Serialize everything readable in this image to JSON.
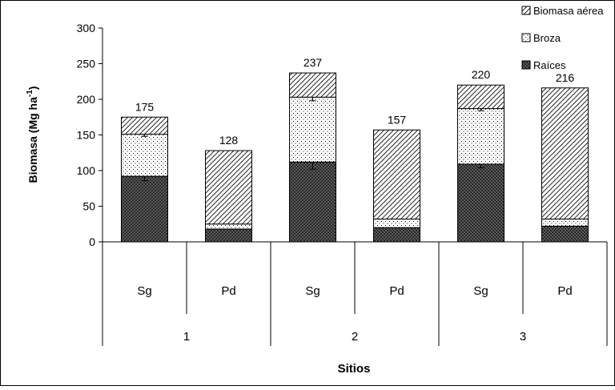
{
  "chart_data": {
    "type": "bar",
    "stacked": true,
    "categories": [
      "Sg",
      "Pd",
      "Sg",
      "Pd",
      "Sg",
      "Pd"
    ],
    "groups": [
      {
        "label": "1",
        "span": 2
      },
      {
        "label": "2",
        "span": 2
      },
      {
        "label": "3",
        "span": 2
      }
    ],
    "series": [
      {
        "name": "Raíces",
        "values": [
          92,
          18,
          112,
          20,
          109,
          22
        ],
        "errors": [
          6,
          null,
          10,
          null,
          5,
          null
        ]
      },
      {
        "name": "Broza",
        "values": [
          59,
          7,
          91,
          12,
          78,
          10
        ],
        "errors": [
          3,
          null,
          5,
          null,
          3,
          null
        ]
      },
      {
        "name": "Biomasa aérea",
        "values": [
          24,
          103,
          34,
          125,
          33,
          184
        ],
        "errors": [
          null,
          null,
          null,
          null,
          null,
          null
        ]
      }
    ],
    "totals": [
      "175",
      "128",
      "237",
      "157",
      "220",
      "216"
    ],
    "legend_order": [
      "Biomasa aérea",
      "Broza",
      "Raíces"
    ],
    "legend_position": "top-right",
    "ylabel_main": "Biomasa (Mg ha",
    "ylabel_sup": "-1",
    "ylabel_end": ")",
    "xlabel": "Sitios",
    "ylim": [
      0,
      300
    ],
    "yticks": [
      "0",
      "50",
      "100",
      "150",
      "200",
      "250",
      "300"
    ],
    "grid": false
  }
}
